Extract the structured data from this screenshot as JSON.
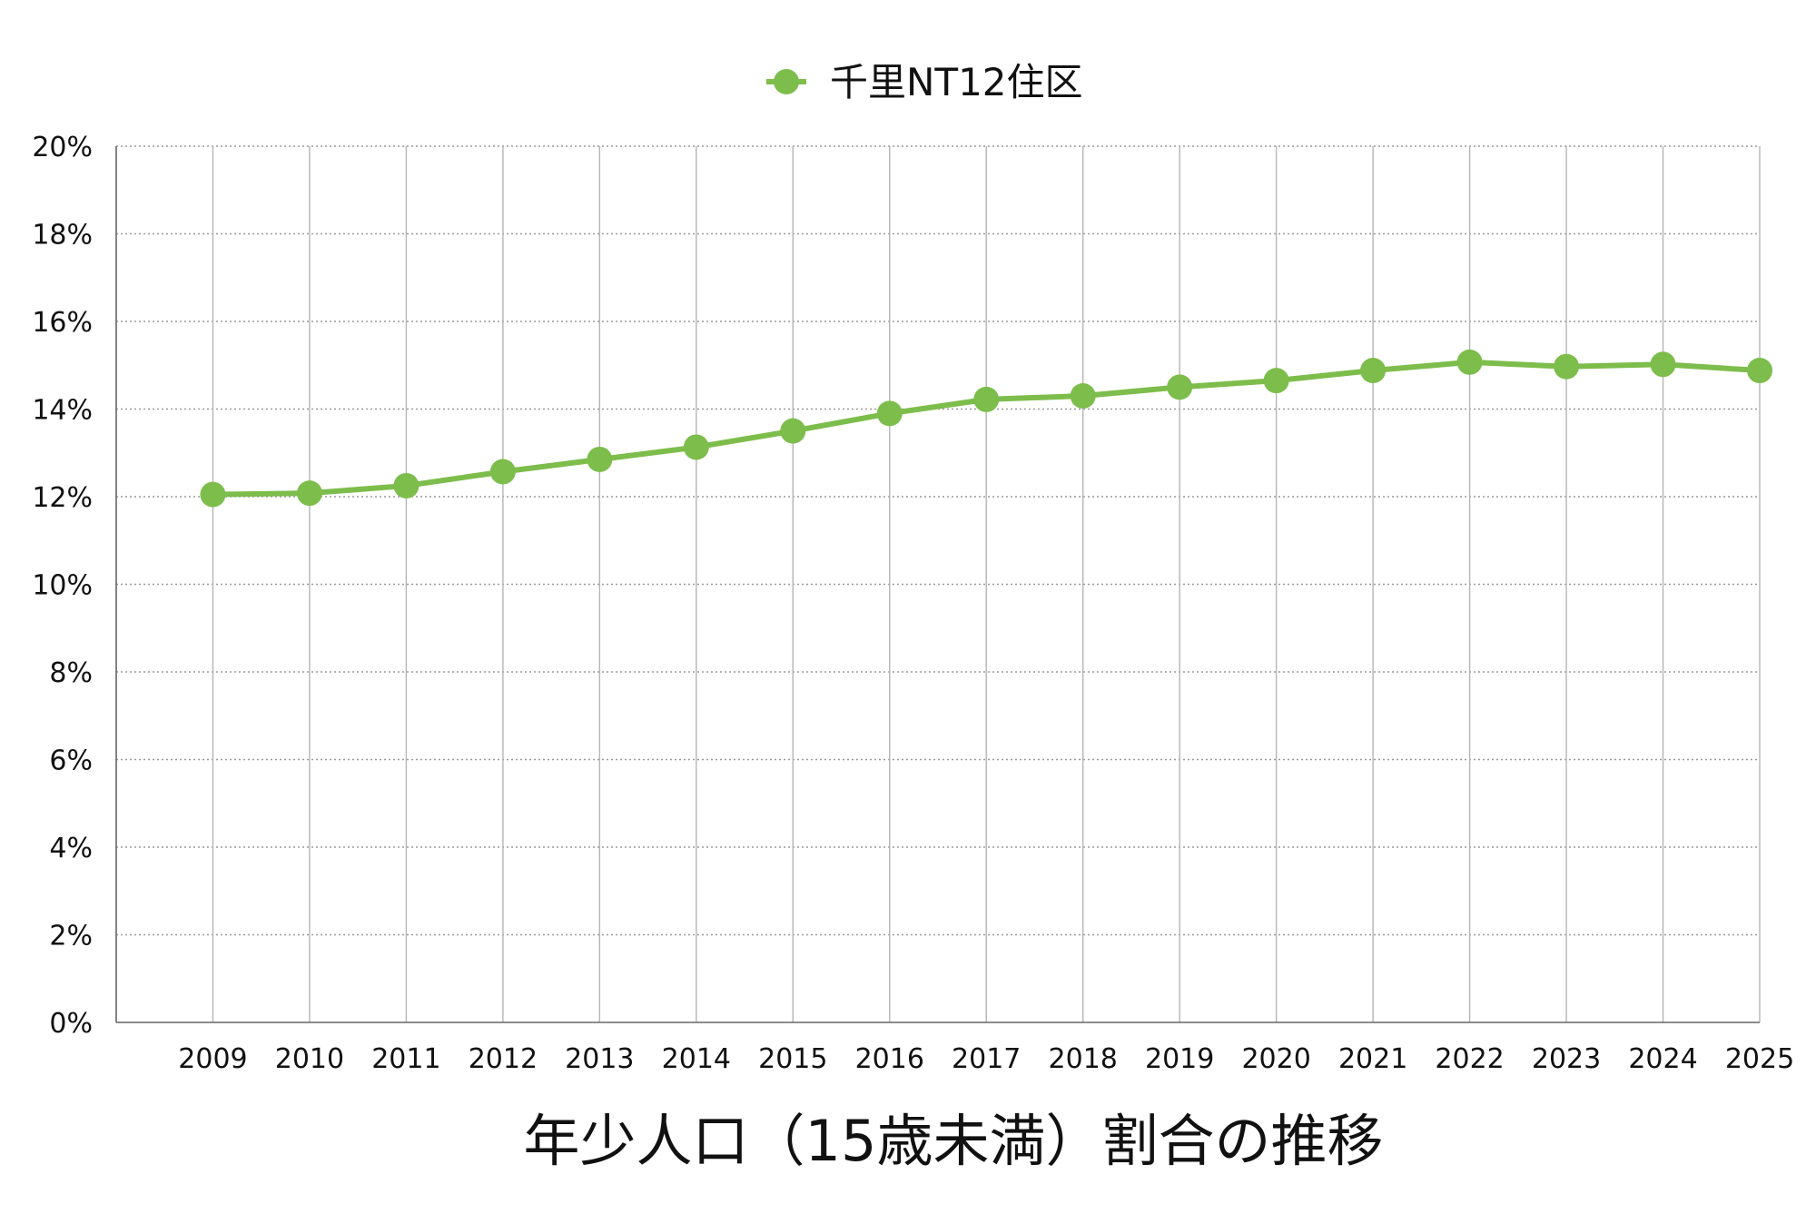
{
  "chart_data": {
    "type": "line",
    "title": "年少人口（15歳未満）割合の推移",
    "xlabel": "",
    "ylabel": "",
    "categories": [
      "2009",
      "2010",
      "2011",
      "2012",
      "2013",
      "2014",
      "2015",
      "2016",
      "2017",
      "2018",
      "2019",
      "2020",
      "2021",
      "2022",
      "2023",
      "2024",
      "2025"
    ],
    "series": [
      {
        "name": "千里NT12住区",
        "color": "#7dbd4b",
        "values": [
          12.05,
          12.08,
          12.25,
          12.57,
          12.85,
          13.13,
          13.5,
          13.9,
          14.22,
          14.3,
          14.5,
          14.65,
          14.88,
          15.07,
          14.97,
          15.02,
          14.88
        ]
      }
    ],
    "ylim": [
      0,
      20
    ],
    "yticks": [
      0,
      2,
      4,
      6,
      8,
      10,
      12,
      14,
      16,
      18,
      20
    ],
    "ytick_labels": [
      "0%",
      "2%",
      "4%",
      "6%",
      "8%",
      "10%",
      "12%",
      "14%",
      "16%",
      "18%",
      "20%"
    ],
    "grid": true,
    "legend_position": "top-center"
  }
}
